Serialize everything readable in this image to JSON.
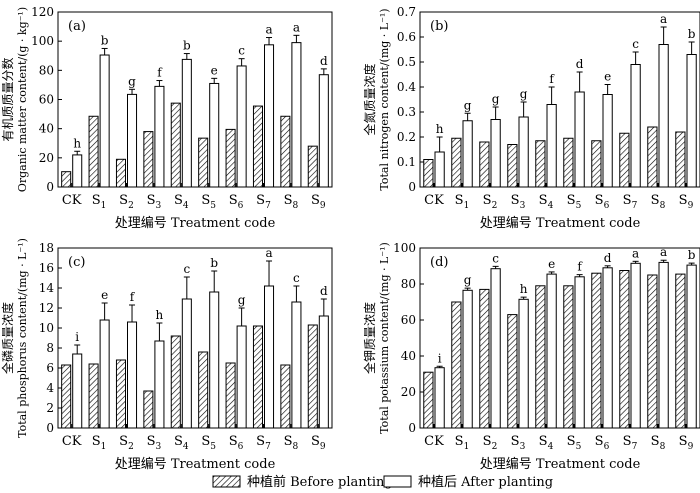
{
  "figure": {
    "legend": {
      "before": "种植前 Before planting",
      "after": "种植后 After planting"
    }
  },
  "chart_data": [
    {
      "type": "bar",
      "panel": "(a)",
      "xlabel": "处理编号 Treatment code",
      "ylabel": {
        "zh": "有机质质量分数",
        "en": "Organic matter content/(g · kg⁻¹)"
      },
      "ylim": [
        0,
        120
      ],
      "yticks": [
        0,
        20,
        40,
        60,
        80,
        100,
        120
      ],
      "categories": [
        "CK",
        "S1",
        "S2",
        "S3",
        "S4",
        "S5",
        "S6",
        "S7",
        "S8",
        "S9"
      ],
      "series": [
        {
          "name": "种植前 Before planting",
          "values": [
            10.5,
            48.5,
            19,
            38,
            57.5,
            33.5,
            39.5,
            55.5,
            48.5,
            28
          ]
        },
        {
          "name": "种植后 After planting",
          "values": [
            22,
            90.5,
            63.5,
            69,
            87.5,
            71,
            83,
            97.5,
            99,
            77
          ],
          "errors": [
            2.5,
            4.5,
            3.5,
            4,
            4,
            3.5,
            5,
            5,
            5,
            4
          ]
        }
      ],
      "letters": [
        "h",
        "b",
        "g",
        "f",
        "b",
        "e",
        "c",
        "a",
        "a",
        "d"
      ]
    },
    {
      "type": "bar",
      "panel": "(b)",
      "xlabel": "处理编号 Treatment code",
      "ylabel": {
        "zh": "全氮质量浓度",
        "en": "Total nitrogen content/(mg · L⁻¹)"
      },
      "ylim": [
        0,
        0.7
      ],
      "yticks": [
        0,
        0.1,
        0.2,
        0.3,
        0.4,
        0.5,
        0.6,
        0.7
      ],
      "categories": [
        "CK",
        "S1",
        "S2",
        "S3",
        "S4",
        "S5",
        "S6",
        "S7",
        "S8",
        "S9"
      ],
      "series": [
        {
          "name": "种植前 Before planting",
          "values": [
            0.11,
            0.195,
            0.18,
            0.17,
            0.185,
            0.195,
            0.185,
            0.215,
            0.24,
            0.22
          ]
        },
        {
          "name": "种植后 After planting",
          "values": [
            0.14,
            0.265,
            0.27,
            0.28,
            0.33,
            0.38,
            0.37,
            0.49,
            0.57,
            0.53
          ],
          "errors": [
            0.06,
            0.03,
            0.05,
            0.06,
            0.07,
            0.08,
            0.04,
            0.05,
            0.07,
            0.05
          ]
        }
      ],
      "letters": [
        "h",
        "g",
        "g",
        "g",
        "f",
        "d",
        "e",
        "c",
        "a",
        "b"
      ]
    },
    {
      "type": "bar",
      "panel": "(c)",
      "xlabel": "处理编号 Treatment code",
      "ylabel": {
        "zh": "全磷质量浓度",
        "en": "Total phosphorus content/(mg · L⁻¹)"
      },
      "ylim": [
        0,
        18
      ],
      "yticks": [
        0,
        2,
        4,
        6,
        8,
        10,
        12,
        14,
        16,
        18
      ],
      "categories": [
        "CK",
        "S1",
        "S2",
        "S3",
        "S4",
        "S5",
        "S6",
        "S7",
        "S8",
        "S9"
      ],
      "series": [
        {
          "name": "种植前 Before planting",
          "values": [
            6.3,
            6.4,
            6.8,
            3.7,
            9.2,
            7.6,
            6.5,
            10.2,
            6.3,
            10.3
          ]
        },
        {
          "name": "种植后 After planting",
          "values": [
            7.4,
            10.8,
            10.6,
            8.7,
            12.9,
            13.6,
            10.2,
            14.2,
            12.6,
            11.2
          ],
          "errors": [
            0.9,
            1.7,
            1.7,
            1.8,
            2.2,
            2.1,
            1.8,
            2.5,
            1.6,
            1.7
          ]
        }
      ],
      "letters": [
        "i",
        "e",
        "f",
        "h",
        "c",
        "b",
        "g",
        "a",
        "c",
        "d"
      ]
    },
    {
      "type": "bar",
      "panel": "(d)",
      "xlabel": "处理编号 Treatment code",
      "ylabel": {
        "zh": "全钾质量浓度",
        "en": "Total potassium content/(mg · L⁻¹)"
      },
      "ylim": [
        0,
        100
      ],
      "yticks": [
        0,
        20,
        40,
        60,
        80,
        100
      ],
      "categories": [
        "CK",
        "S1",
        "S2",
        "S3",
        "S4",
        "S5",
        "S6",
        "S7",
        "S8",
        "S9"
      ],
      "series": [
        {
          "name": "种植前 Before planting",
          "values": [
            31,
            70,
            77,
            63,
            79,
            79,
            86,
            87.5,
            85,
            85.5
          ]
        },
        {
          "name": "种植后 After planting",
          "values": [
            33.5,
            76.5,
            88.5,
            71.5,
            85.5,
            84,
            89,
            91.5,
            92,
            90.5
          ],
          "errors": [
            0.8,
            1.2,
            1.3,
            1.2,
            1.2,
            1.2,
            1.1,
            1.1,
            1.2,
            1.1
          ]
        }
      ],
      "letters": [
        "i",
        "g",
        "c",
        "h",
        "e",
        "f",
        "d",
        "a",
        "a",
        "b"
      ]
    }
  ]
}
